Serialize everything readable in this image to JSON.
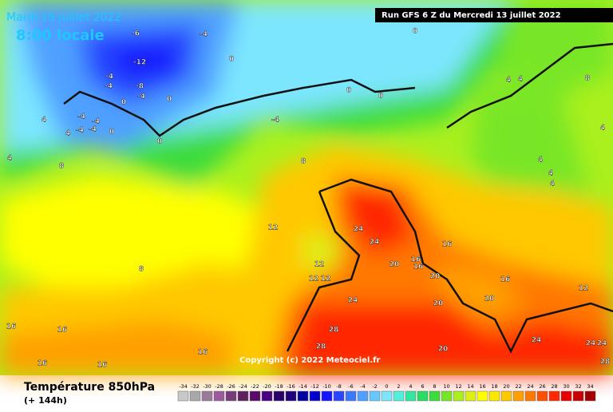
{
  "header": {
    "date": "Mardi 19 juillet 2022",
    "time": "8:00 locale",
    "run": "Run GFS 6 Z du Mercredi 13 juillet 2022"
  },
  "copyright": "Copyright (c) 2022 Meteociel.fr",
  "footer": {
    "title": "Température 850hPa",
    "lead": "(+ 144h)"
  },
  "contour_labels": [
    "-6",
    "-4",
    "-12",
    "-4",
    "-4",
    "-8",
    "-4",
    "0",
    "0",
    "-4",
    "-4",
    "-4",
    "-4",
    "4",
    "4",
    "0",
    "0",
    "0",
    "0",
    "0",
    "0",
    "-4",
    "4",
    "4",
    "8",
    "4",
    "4",
    "4",
    "4",
    "8",
    "8",
    "4",
    "12",
    "12",
    "12",
    "12",
    "24",
    "24",
    "20",
    "16",
    "16",
    "16",
    "20",
    "20",
    "16",
    "20",
    "12",
    "24",
    "8",
    "16",
    "16",
    "16",
    "16",
    "16",
    "28",
    "28",
    "20",
    "24",
    "24",
    "24",
    "28"
  ],
  "legend": {
    "ticks": [
      -34,
      -32,
      -30,
      -28,
      -26,
      -24,
      -22,
      -20,
      -18,
      -16,
      -14,
      -12,
      -10,
      -8,
      -6,
      -4,
      -2,
      0,
      2,
      4,
      6,
      8,
      10,
      12,
      14,
      16,
      18,
      20,
      22,
      24,
      26,
      28,
      30,
      32,
      34
    ],
    "colors": [
      "#c8c8c8",
      "#a8a8a8",
      "#9a7a9a",
      "#9b5a9b",
      "#7a3a7a",
      "#60205e",
      "#5a0a6a",
      "#4b0082",
      "#2a006a",
      "#1e0078",
      "#0000a0",
      "#0000cd",
      "#1414ff",
      "#2846ff",
      "#3c78ff",
      "#50a0ff",
      "#64c8ff",
      "#7de6ff",
      "#50f0dc",
      "#32e6a0",
      "#28dc64",
      "#3cdc3c",
      "#78e628",
      "#aaf01e",
      "#dcf014",
      "#ffff00",
      "#ffe600",
      "#ffc800",
      "#ffa000",
      "#ff7800",
      "#ff5000",
      "#ff2800",
      "#e60000",
      "#c80000",
      "#a00000"
    ]
  }
}
